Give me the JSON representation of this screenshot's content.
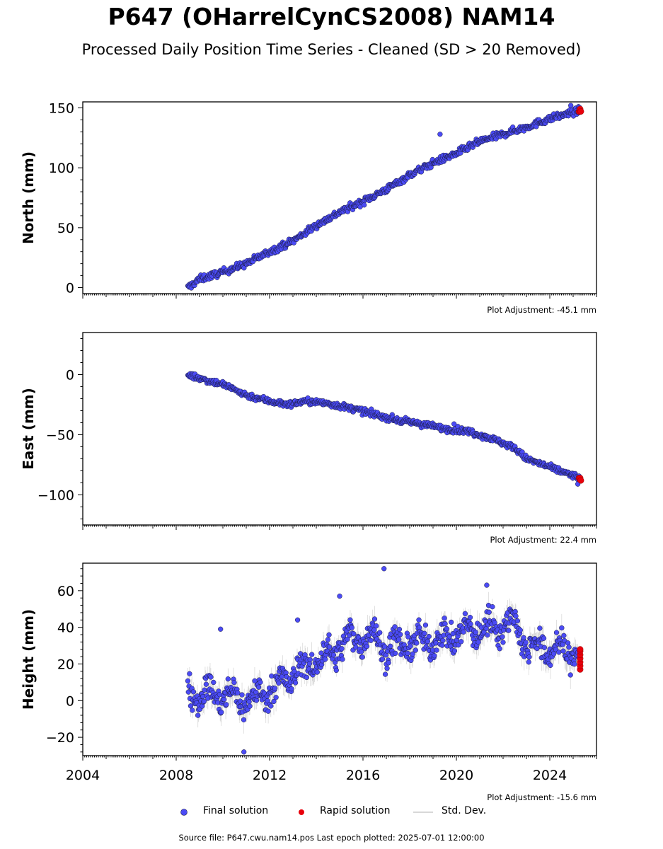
{
  "title": "P647 (OHarrelCynCS2008) NAM14",
  "subtitle": "Processed Daily Position Time Series - Cleaned (SD > 20 Removed)",
  "footer": {
    "source": "Source file: P647.cwu.nam14.pos  Last epoch plotted: 2025-07-01 12:00:00"
  },
  "legend": [
    {
      "label": "Final solution",
      "color": "#4b4bf5"
    },
    {
      "label": "Rapid solution",
      "color": "#e8000b"
    },
    {
      "label": "Std. Dev.",
      "color": "#cccccc"
    }
  ],
  "colors": {
    "final": "#4b4bf5",
    "rapid": "#e8000b",
    "std_dev": "#b0b0b0",
    "marker_edge": "#1a1a40"
  },
  "chart_data": [
    {
      "type": "scatter",
      "ylabel": "North (mm)",
      "adjustment": "Plot Adjustment: -45.1 mm",
      "xlim": [
        2004.0,
        2026.0
      ],
      "ylim": [
        -5,
        155
      ],
      "yticks": [
        0,
        50,
        100,
        150
      ],
      "ytick_labels": [
        "0",
        "50",
        "100",
        "150"
      ],
      "std_dev_mm": 2.0,
      "trend": {
        "x": [
          2008.5,
          2009.0,
          2010.0,
          2011.0,
          2012.0,
          2013.0,
          2014.0,
          2015.0,
          2016.0,
          2017.0,
          2018.0,
          2019.0,
          2020.0,
          2021.0,
          2022.0,
          2023.0,
          2024.0,
          2025.3
        ],
        "y": [
          0,
          7,
          13,
          20,
          30,
          39,
          52,
          63,
          72,
          82,
          94,
          104,
          112,
          122,
          128,
          134,
          141,
          148
        ]
      },
      "scatter_spread_mm": 2.0,
      "outliers": [
        {
          "x": 2019.3,
          "y": 128
        },
        {
          "x": 2024.9,
          "y": 152
        }
      ],
      "rapid": [
        {
          "x": 2025.25,
          "y": 147
        },
        {
          "x": 2025.28,
          "y": 148
        },
        {
          "x": 2025.3,
          "y": 149
        },
        {
          "x": 2025.33,
          "y": 147
        }
      ]
    },
    {
      "type": "scatter",
      "ylabel": "East (mm)",
      "adjustment": "Plot Adjustment: 22.4 mm",
      "xlim": [
        2004.0,
        2026.0
      ],
      "ylim": [
        -125,
        35
      ],
      "yticks": [
        -100,
        -50,
        0
      ],
      "ytick_labels": [
        "−100",
        "−50",
        "0"
      ],
      "std_dev_mm": 2.0,
      "trend": {
        "x": [
          2008.5,
          2009.0,
          2010.0,
          2011.0,
          2012.0,
          2012.8,
          2013.5,
          2014.5,
          2015.5,
          2016.5,
          2017.5,
          2018.5,
          2019.5,
          2020.5,
          2021.5,
          2022.5,
          2023.0,
          2024.0,
          2025.3
        ],
        "y": [
          0,
          -3,
          -8,
          -17,
          -22,
          -25,
          -22,
          -24,
          -28,
          -33,
          -38,
          -41,
          -45,
          -47,
          -53,
          -61,
          -70,
          -77,
          -86
        ]
      },
      "scatter_spread_mm": 1.8,
      "outliers": [
        {
          "x": 2019.9,
          "y": -41
        },
        {
          "x": 2025.2,
          "y": -91
        }
      ],
      "rapid": [
        {
          "x": 2025.25,
          "y": -86
        },
        {
          "x": 2025.28,
          "y": -87
        },
        {
          "x": 2025.3,
          "y": -86
        },
        {
          "x": 2025.33,
          "y": -88
        }
      ]
    },
    {
      "type": "scatter",
      "ylabel": "Height (mm)",
      "adjustment": "Plot Adjustment: -15.6 mm",
      "xlim": [
        2004.0,
        2026.0
      ],
      "ylim": [
        -30,
        75
      ],
      "yticks": [
        -20,
        0,
        20,
        40,
        60
      ],
      "ytick_labels": [
        "−20",
        "0",
        "20",
        "40",
        "60"
      ],
      "xticks": [
        2004,
        2008,
        2012,
        2016,
        2020,
        2024
      ],
      "xtick_labels": [
        "2004",
        "2008",
        "2012",
        "2016",
        "2020",
        "2024"
      ],
      "std_dev_mm": 5.5,
      "trend": {
        "x": [
          2008.5,
          2009.5,
          2010.5,
          2011.0,
          2011.5,
          2012.5,
          2013.5,
          2014.5,
          2015.5,
          2016.5,
          2017.0,
          2017.5,
          2018.5,
          2019.5,
          2020.5,
          2021.5,
          2022.5,
          2023.0,
          2024.0,
          2025.2
        ],
        "y": [
          5,
          3,
          2,
          0,
          2,
          10,
          18,
          25,
          34,
          35,
          28,
          30,
          32,
          34,
          38,
          40,
          43,
          30,
          28,
          27
        ]
      },
      "scatter_spread_mm": 5.5,
      "seasonal_amplitude_mm": 4.5,
      "outliers": [
        {
          "x": 2016.9,
          "y": 72
        },
        {
          "x": 2010.9,
          "y": -28
        },
        {
          "x": 2009.9,
          "y": 39
        },
        {
          "x": 2021.3,
          "y": 63
        },
        {
          "x": 2013.2,
          "y": 44
        },
        {
          "x": 2015.0,
          "y": 57
        }
      ],
      "rapid": [
        {
          "x": 2025.3,
          "y": 17
        },
        {
          "x": 2025.3,
          "y": 19
        },
        {
          "x": 2025.3,
          "y": 21
        },
        {
          "x": 2025.3,
          "y": 23
        },
        {
          "x": 2025.3,
          "y": 25
        },
        {
          "x": 2025.3,
          "y": 27
        },
        {
          "x": 2025.3,
          "y": 28
        }
      ]
    }
  ]
}
